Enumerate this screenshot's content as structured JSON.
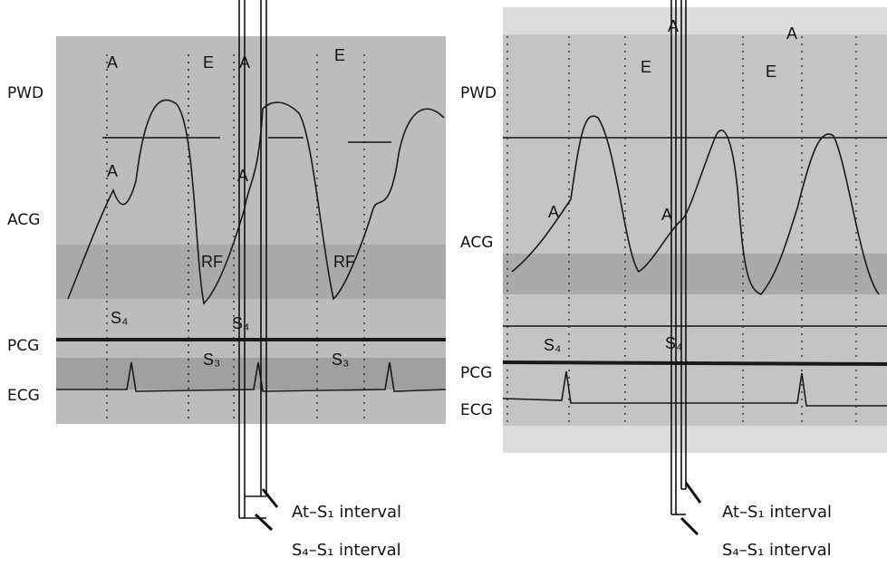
{
  "panels": [
    {
      "track_labels": [
        "PWD",
        "ACG",
        "PCG",
        "ECG"
      ],
      "wave_labels": [
        "A",
        "E",
        "A",
        "E",
        "A",
        "A",
        "RF",
        "RF",
        "S₄",
        "S₄",
        "S₃",
        "S₃"
      ],
      "interval_labels": [
        "At–S₁ interval",
        "S₄–S₁ interval"
      ]
    },
    {
      "track_labels": [
        "PWD",
        "ACG",
        "PCG",
        "ECG"
      ],
      "wave_labels": [
        "A",
        "E",
        "A",
        "E",
        "A",
        "A",
        "S₄",
        "S₄"
      ],
      "interval_labels": [
        "At–S₁ interval",
        "S₄–S₁ interval"
      ]
    }
  ]
}
